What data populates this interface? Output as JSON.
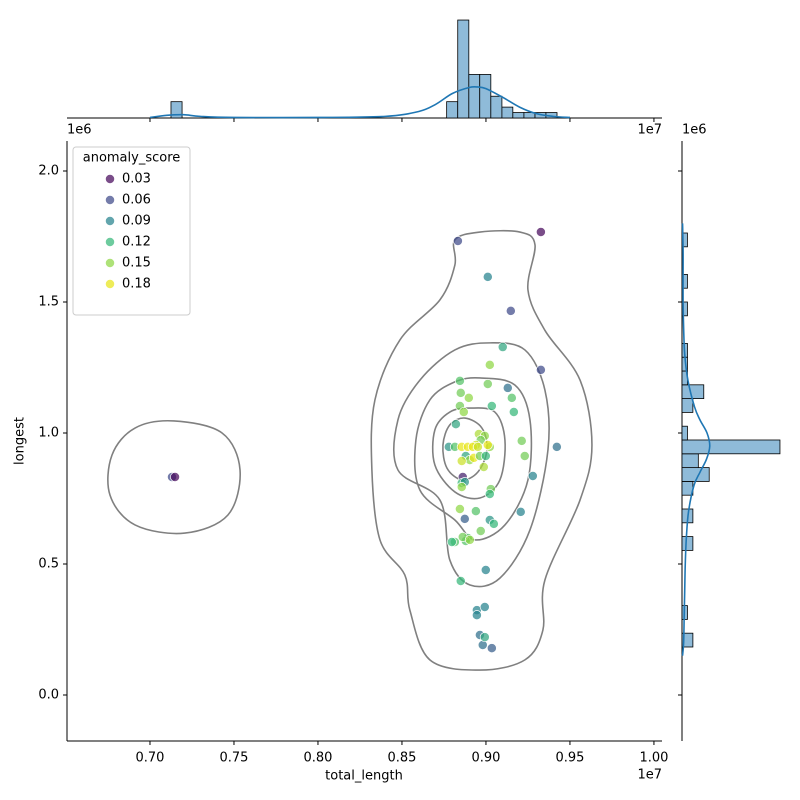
{
  "chart_data": {
    "type": "jointplot",
    "x_label": "total_length",
    "y_label": "longest",
    "x_offset": "1e7",
    "y_offset": "1e6",
    "xlim": [
      0.6506,
      1.0048
    ],
    "ylim": [
      -0.1756,
      2.1145
    ],
    "xticks": [
      {
        "value": 0.7,
        "label": "0.70"
      },
      0.75,
      {
        "value": 0.8,
        "label": "0.80"
      },
      0.85,
      {
        "value": 0.9,
        "label": "0.90"
      },
      0.95,
      {
        "value": 1.0,
        "label": "1.00"
      }
    ],
    "yticks": [
      {
        "value": 0.0,
        "label": "0.0"
      },
      0.5,
      {
        "value": 1.0,
        "label": "1.0"
      },
      1.5,
      {
        "value": 2.0,
        "label": "2.0"
      }
    ],
    "legend": {
      "title": "anomaly_score",
      "corner": "upper left",
      "levels": [
        0.03,
        0.06,
        0.09,
        0.12,
        0.15,
        0.18
      ],
      "colors": [
        "#46085c",
        "#3e4a89",
        "#26828e",
        "#35b779",
        "#8fd744",
        "#e8e419"
      ]
    },
    "scatter": {
      "x": [
        0.7131,
        0.7149,
        0.8833,
        0.9327,
        0.9011,
        0.9148,
        0.91,
        0.9023,
        0.9327,
        0.913,
        0.9011,
        0.9154,
        0.8845,
        0.885,
        0.8845,
        0.8898,
        0.9166,
        0.9035,
        0.8821,
        0.8868,
        0.8958,
        0.8993,
        0.8969,
        0.894,
        0.8779,
        0.8815,
        0.8856,
        0.8892,
        0.8922,
        0.8952,
        0.9023,
        0.9011,
        0.9213,
        0.9422,
        0.888,
        0.8904,
        0.8928,
        0.8856,
        0.8964,
        0.8999,
        0.9231,
        0.8987,
        0.9279,
        0.8862,
        0.8856,
        0.8874,
        0.8856,
        0.9029,
        0.9023,
        0.8845,
        0.894,
        0.9207,
        0.9023,
        0.9047,
        0.8874,
        0.8969,
        0.8815,
        0.8797,
        0.8892,
        0.888,
        0.8862,
        0.8904,
        0.8999,
        0.885,
        0.8946,
        0.8993,
        0.8946,
        0.8964,
        0.8981,
        0.9035,
        0.8993
      ],
      "y": [
        0.832,
        0.832,
        1.733,
        1.767,
        1.596,
        1.466,
        1.328,
        1.26,
        1.241,
        1.172,
        1.187,
        1.134,
        1.199,
        1.153,
        1.103,
        1.134,
        1.08,
        1.103,
        1.034,
        1.08,
        0.996,
        0.989,
        0.973,
        0.954,
        0.947,
        0.947,
        0.947,
        0.947,
        0.947,
        0.947,
        0.947,
        0.954,
        0.97,
        0.947,
        0.912,
        0.897,
        0.905,
        0.893,
        0.912,
        0.912,
        0.912,
        0.87,
        0.836,
        0.832,
        0.809,
        0.813,
        0.794,
        0.786,
        0.767,
        0.71,
        0.702,
        0.699,
        0.668,
        0.653,
        0.672,
        0.626,
        0.584,
        0.584,
        0.599,
        0.588,
        0.603,
        0.592,
        0.477,
        0.435,
        0.324,
        0.336,
        0.305,
        0.229,
        0.191,
        0.179,
        0.221
      ],
      "hue": [
        0.06,
        0.03,
        0.06,
        0.03,
        0.09,
        0.06,
        0.11,
        0.15,
        0.06,
        0.08,
        0.14,
        0.13,
        0.13,
        0.14,
        0.14,
        0.15,
        0.12,
        0.12,
        0.11,
        0.15,
        0.16,
        0.15,
        0.14,
        0.17,
        0.1,
        0.13,
        0.18,
        0.18,
        0.18,
        0.17,
        0.15,
        0.18,
        0.14,
        0.08,
        0.11,
        0.15,
        0.18,
        0.17,
        0.14,
        0.12,
        0.14,
        0.16,
        0.09,
        0.04,
        0.12,
        0.1,
        0.15,
        0.14,
        0.12,
        0.15,
        0.13,
        0.09,
        0.1,
        0.12,
        0.07,
        0.14,
        0.13,
        0.12,
        0.13,
        0.13,
        0.14,
        0.15,
        0.09,
        0.12,
        0.09,
        0.09,
        0.09,
        0.08,
        0.08,
        0.07,
        0.11
      ]
    },
    "contour_color": "#808080",
    "contours": [
      {
        "x": [
          0.8815,
          0.8964,
          0.9202,
          0.9292,
          0.925,
          0.9351,
          0.956,
          0.9631,
          0.956,
          0.9351,
          0.9339,
          0.9232,
          0.8964,
          0.8666,
          0.8547,
          0.8517,
          0.8369,
          0.8321,
          0.8339,
          0.8488,
          0.8726,
          0.8815
        ],
        "y": [
          1.737,
          1.767,
          1.767,
          1.718,
          1.546,
          1.392,
          1.202,
          0.954,
          0.744,
          0.439,
          0.248,
          0.134,
          0.095,
          0.134,
          0.324,
          0.458,
          0.592,
          0.859,
          1.126,
          1.355,
          1.508,
          1.641
        ]
      },
      {
        "x": [
          0.9023,
          0.9232,
          0.9351,
          0.9369,
          0.9262,
          0.9083,
          0.8905,
          0.8785,
          0.8726,
          0.8476,
          0.8476,
          0.8607,
          0.8815
        ],
        "y": [
          1.344,
          1.317,
          1.164,
          0.935,
          0.63,
          0.446,
          0.42,
          0.515,
          0.744,
          0.859,
          1.05,
          1.202,
          1.317
        ]
      },
      {
        "x": [
          0.8964,
          0.9172,
          0.9262,
          0.925,
          0.9113,
          0.8934,
          0.8815,
          0.8607,
          0.8583,
          0.8666,
          0.8815
        ],
        "y": [
          1.21,
          1.183,
          1.05,
          0.821,
          0.649,
          0.592,
          0.668,
          0.782,
          0.973,
          1.126,
          1.195
        ]
      },
      {
        "x": [
          0.8905,
          0.9053,
          0.9113,
          0.9083,
          0.8964,
          0.8815,
          0.8696,
          0.8696,
          0.8785
        ],
        "y": [
          1.095,
          1.08,
          0.973,
          0.821,
          0.752,
          0.775,
          0.878,
          1.012,
          1.08
        ]
      },
      {
        "x": [
          0.8875,
          0.8976,
          0.9006,
          0.8952,
          0.8857,
          0.8768,
          0.8744,
          0.8785
        ],
        "y": [
          1.057,
          1.019,
          0.935,
          0.851,
          0.821,
          0.866,
          0.954,
          1.031
        ]
      },
      {
        "x": [
          0.7143,
          0.7429,
          0.7536,
          0.7464,
          0.7208,
          0.6911,
          0.6762,
          0.6774,
          0.6911
        ],
        "y": [
          1.046,
          1.0,
          0.859,
          0.687,
          0.618,
          0.649,
          0.763,
          0.916,
          1.019
        ]
      }
    ],
    "hist_color": "#8fbbd9",
    "kde_color": "#1f77b4",
    "top_hist": {
      "bins": [
        0.7125,
        0.7191,
        0.7256,
        0.7322,
        0.7388,
        0.7453,
        0.7519,
        0.7585,
        0.765,
        0.7716,
        0.7782,
        0.7847,
        0.7913,
        0.7978,
        0.8044,
        0.811,
        0.8175,
        0.8241,
        0.8307,
        0.8372,
        0.8438,
        0.8504,
        0.8569,
        0.8635,
        0.8701,
        0.8766,
        0.8832,
        0.8898,
        0.8963,
        0.9029,
        0.9095,
        0.916,
        0.9226,
        0.9292,
        0.9357,
        0.9423
      ],
      "counts": [
        3,
        0,
        0,
        0,
        0,
        0,
        0,
        0,
        0,
        0,
        0,
        0,
        0,
        0,
        0,
        0,
        0,
        0,
        0,
        0,
        0,
        0,
        0,
        0,
        0,
        3,
        18,
        8,
        8,
        4,
        2,
        1,
        1,
        1,
        1
      ],
      "ylim": [
        0,
        19
      ],
      "kde": {
        "at": [
          0.7,
          0.71,
          0.72,
          0.73,
          0.75,
          0.8,
          0.84,
          0.86,
          0.87,
          0.88,
          0.89,
          0.895,
          0.9,
          0.91,
          0.92,
          0.93,
          0.94,
          0.95
        ],
        "density": [
          0.1,
          0.5,
          0.6,
          0.3,
          0.1,
          0.1,
          0.3,
          1.2,
          2.5,
          4.5,
          5.6,
          5.7,
          5.4,
          3.8,
          2.0,
          0.8,
          0.3,
          0.1
        ]
      }
    },
    "right_hist": {
      "bins": [
        0.1832,
        0.2359,
        0.2885,
        0.3412,
        0.3939,
        0.4466,
        0.4992,
        0.5519,
        0.6046,
        0.6572,
        0.7099,
        0.7626,
        0.8152,
        0.8679,
        0.9206,
        0.9733,
        1.0259,
        1.0786,
        1.1313,
        1.1839,
        1.2366,
        1.2893,
        1.3419,
        1.3946,
        1.4473,
        1.5,
        1.5526,
        1.6053,
        1.658,
        1.7106,
        1.7633
      ],
      "counts": [
        2,
        0,
        1,
        0,
        0,
        0,
        0,
        2,
        0,
        2,
        0,
        2,
        5,
        3,
        18,
        1,
        0,
        2,
        4,
        1,
        1,
        1,
        0,
        0,
        1,
        0,
        1,
        0,
        0,
        1
      ],
      "xlim": [
        0,
        19
      ],
      "kde": {
        "at": [
          0.15,
          0.2,
          0.3,
          0.4,
          0.5,
          0.6,
          0.7,
          0.8,
          0.85,
          0.9,
          0.95,
          1.0,
          1.05,
          1.1,
          1.2,
          1.3,
          1.4,
          1.5,
          1.6,
          1.7,
          1.8
        ],
        "density": [
          0.1,
          0.3,
          0.4,
          0.5,
          0.6,
          0.8,
          1.2,
          2.2,
          3.3,
          4.5,
          5.1,
          4.6,
          3.3,
          2.3,
          1.1,
          0.5,
          0.3,
          0.2,
          0.2,
          0.2,
          0.1
        ]
      }
    }
  }
}
